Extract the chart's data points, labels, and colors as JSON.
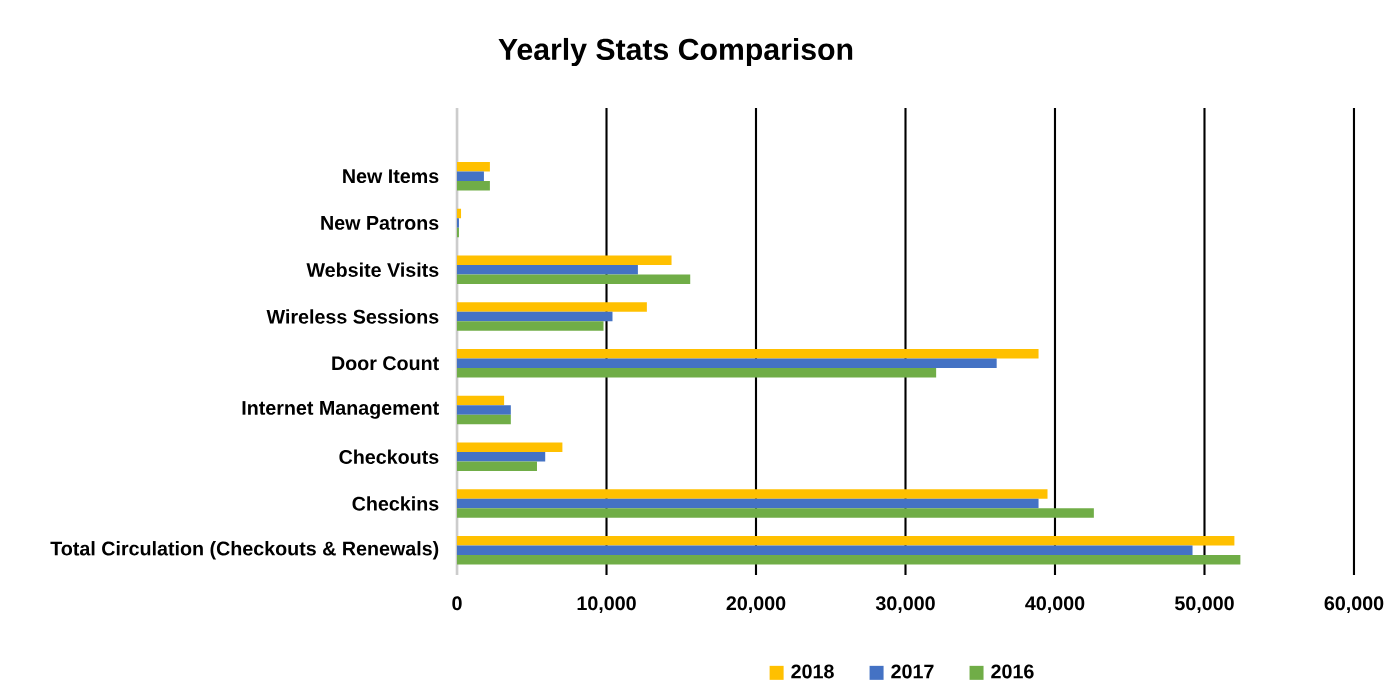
{
  "chart_data": {
    "type": "bar",
    "orientation": "horizontal",
    "title": "Yearly Stats Comparison",
    "categories": [
      "New Items",
      "New Patrons",
      "Website Visits",
      "Wireless Sessions",
      "Door Count",
      "Internet Management",
      "Checkouts",
      "Checkins",
      "Total Circulation (Checkouts & Renewals)"
    ],
    "series": [
      {
        "name": "2018",
        "color": "#ffc000",
        "values": [
          2200,
          270,
          14350,
          12700,
          38900,
          3150,
          7050,
          39500,
          52000
        ]
      },
      {
        "name": "2017",
        "color": "#4472c4",
        "values": [
          1800,
          130,
          12100,
          10400,
          36100,
          3600,
          5900,
          38900,
          49200
        ]
      },
      {
        "name": "2016",
        "color": "#70ad47",
        "values": [
          2200,
          130,
          15600,
          9800,
          32050,
          3600,
          5350,
          42600,
          52400
        ]
      }
    ],
    "xlim": [
      0,
      60000
    ],
    "xticks": [
      0,
      {
        "value": 10000,
        "label": "10,000"
      },
      {
        "value": 20000,
        "label": "20,000"
      },
      {
        "value": 30000,
        "label": "30,000"
      },
      {
        "value": 40000,
        "label": "40,000"
      },
      {
        "value": 50000,
        "label": "50,000"
      },
      {
        "value": 60000,
        "label": "60,000"
      }
    ],
    "grid": "x",
    "legend": "bottom"
  }
}
